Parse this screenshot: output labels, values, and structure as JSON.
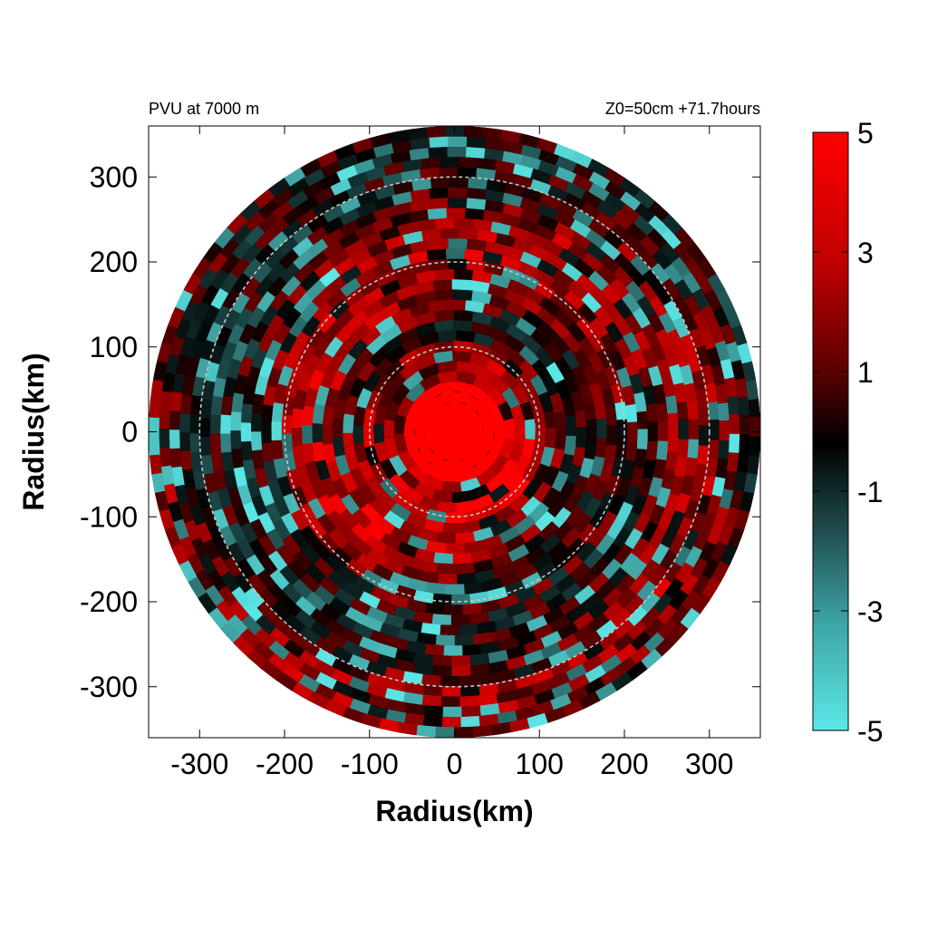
{
  "chart_data": {
    "type": "heatmap",
    "title_left": "PVU at  7000 m",
    "title_right": "Z0=50cm  +71.7hours",
    "xlabel": "Radius(km)",
    "ylabel": "Radius(km)",
    "xlim": [
      -360,
      360
    ],
    "ylim": [
      -360,
      360
    ],
    "x_ticks": [
      -300,
      -200,
      -100,
      0,
      100,
      200,
      300
    ],
    "y_ticks": [
      300,
      200,
      100,
      0,
      -100,
      -200,
      -300
    ],
    "x_tick_labels": [
      "-300",
      "-200",
      "-100",
      "0",
      "100",
      "200",
      "300"
    ],
    "y_tick_labels": [
      "300",
      "200",
      "100",
      "0",
      "-100",
      "-200",
      "-300"
    ],
    "domain_radius_km": 360,
    "range_rings_km": [
      100,
      200,
      300
    ],
    "colorbar": {
      "min": -5,
      "max": 5,
      "ticks": [
        5,
        3,
        1,
        -1,
        -3,
        -5
      ],
      "tick_labels": [
        "5",
        "3",
        "1",
        "-1",
        "-3",
        "-5"
      ],
      "colors": {
        "max": "#ff0000",
        "mid": "#000000",
        "min": "#5ce8e8"
      }
    },
    "grid": false
  }
}
